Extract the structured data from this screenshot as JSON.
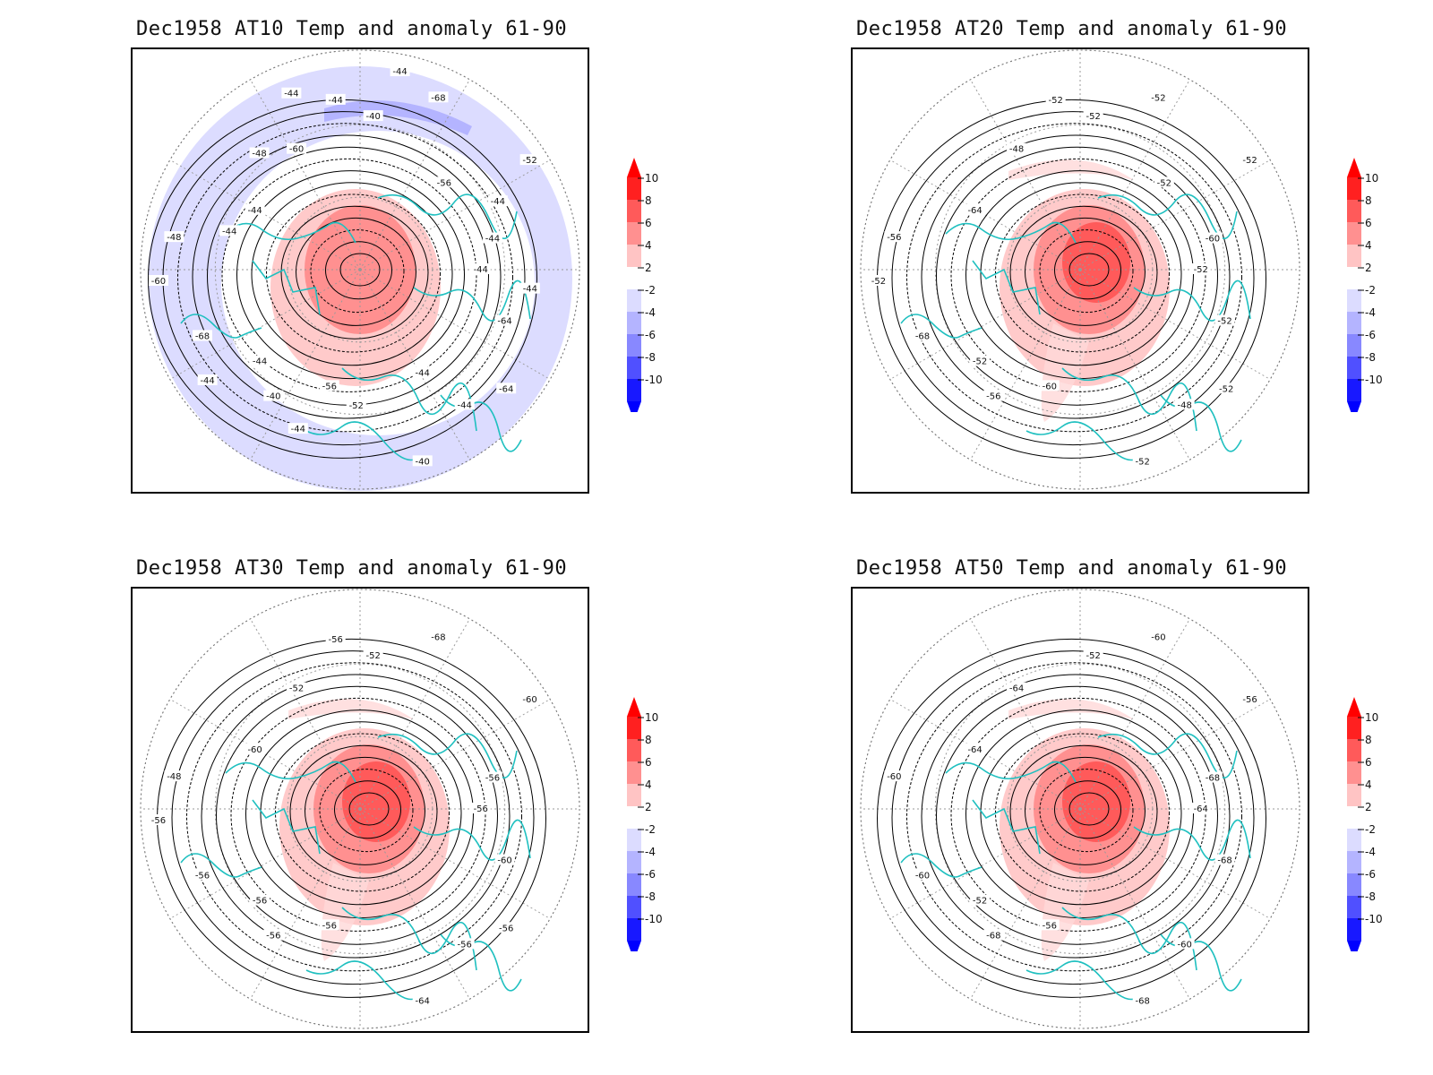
{
  "figure": {
    "panels": [
      {
        "id": "at10",
        "title": "Dec1958 AT10 Temp and anomaly 61-90",
        "contour_labels": [
          "-44",
          "-44",
          "-40",
          "-44",
          "-48",
          "-52",
          "-56",
          "-60",
          "-64",
          "-68",
          "-68",
          "-40",
          "-44",
          "-44",
          "-40",
          "-44",
          "-64",
          "-60",
          "-56",
          "-52",
          "-48",
          "-44",
          "-44",
          "-44",
          "-44",
          "-44",
          "-44",
          "-44",
          "-44"
        ],
        "anomaly_patches": [
          {
            "value": -2,
            "shape": "outer-ring"
          },
          {
            "value": -4,
            "shape": "arc-top"
          },
          {
            "value": 6,
            "shape": "core"
          }
        ]
      },
      {
        "id": "at20",
        "title": "Dec1958 AT20 Temp and anomaly 61-90",
        "contour_labels": [
          "-52",
          "-52",
          "-52",
          "-48",
          "-56",
          "-52",
          "-60",
          "-48",
          "-52",
          "-68",
          "-52",
          "-52",
          "-64",
          "-60",
          "-56",
          "-52",
          "-52",
          "-52",
          "-52"
        ],
        "anomaly_patches": [
          {
            "value": 8,
            "shape": "core"
          },
          {
            "value": 2,
            "shape": "tongue"
          }
        ]
      },
      {
        "id": "at30",
        "title": "Dec1958 AT30 Temp and anomaly 61-90",
        "contour_labels": [
          "-56",
          "-56",
          "-52",
          "-56",
          "-48",
          "-60",
          "-56",
          "-52",
          "-60",
          "-56",
          "-68",
          "-64",
          "-60",
          "-56",
          "-56",
          "-56",
          "-56",
          "-56"
        ],
        "anomaly_patches": [
          {
            "value": 8,
            "shape": "core"
          },
          {
            "value": 2,
            "shape": "tongue"
          }
        ]
      },
      {
        "id": "at50",
        "title": "Dec1958 AT50 Temp and anomaly 61-90",
        "contour_labels": [
          "-64",
          "-52",
          "-52",
          "-60",
          "-60",
          "-56",
          "-56",
          "-64",
          "-68",
          "-60",
          "-60",
          "-68",
          "-64",
          "-68",
          "-68"
        ],
        "anomaly_patches": [
          {
            "value": 8,
            "shape": "core"
          },
          {
            "value": 2,
            "shape": "tongue"
          }
        ]
      }
    ],
    "colorbar": {
      "ticks": [
        "10",
        "8",
        "6",
        "4",
        "2",
        "-2",
        "-4",
        "-6",
        "-8",
        "-10"
      ],
      "colors": [
        "#ff2020",
        "#ff5a5a",
        "#ff9090",
        "#ffc4c4",
        "#ffffff",
        "#dcdcff",
        "#b4b4ff",
        "#8888ff",
        "#5050ff",
        "#1818ff"
      ],
      "top_arrow_color": "#ff0000",
      "bottom_arrow_color": "#0000ff"
    },
    "colors": {
      "coastline": "#20c0c0",
      "contour": "#000000",
      "grid": "#999999"
    }
  }
}
